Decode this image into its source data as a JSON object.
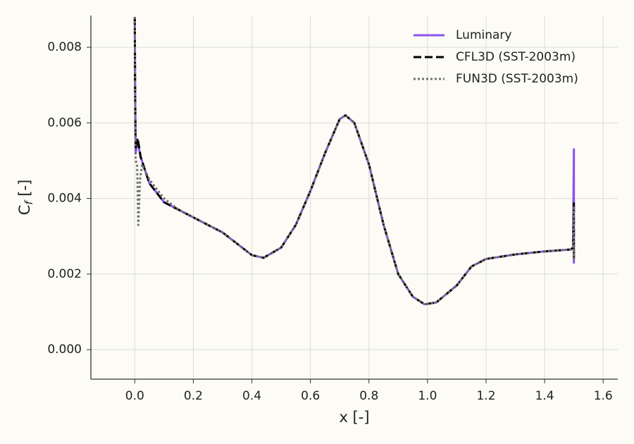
{
  "chart_data": {
    "type": "line",
    "xlabel": "x [-]",
    "ylabel": [
      "C",
      "f",
      " [-]"
    ],
    "xlim": [
      -0.15,
      1.65
    ],
    "ylim": [
      -0.00078,
      0.00884
    ],
    "xticks": [
      {
        "value": 0.0,
        "label": "0.0"
      },
      0.2,
      0.4,
      0.6,
      0.8,
      {
        "value": 1.0,
        "label": "1.0"
      },
      1.2,
      1.4,
      1.6
    ],
    "yticks": [
      {
        "value": 0.0,
        "label": "0.000"
      },
      {
        "value": 0.002,
        "label": "0.002"
      },
      {
        "value": 0.004,
        "label": "0.004"
      },
      {
        "value": 0.006,
        "label": "0.006"
      },
      {
        "value": 0.008,
        "label": "0.008"
      }
    ],
    "grid": true,
    "legend": "upper right",
    "series": [
      {
        "name": "Luminary",
        "color": "#8b54ee",
        "style": "solid",
        "x": [
          0.0,
          0.001,
          0.003,
          0.01,
          0.02,
          0.05,
          0.1,
          0.15,
          0.2,
          0.25,
          0.3,
          0.35,
          0.4,
          0.44,
          0.5,
          0.55,
          0.6,
          0.65,
          0.7,
          0.72,
          0.75,
          0.8,
          0.85,
          0.9,
          0.95,
          0.99,
          1.03,
          1.1,
          1.15,
          1.2,
          1.3,
          1.4,
          1.49,
          1.497,
          1.5,
          1.5,
          1.5
        ],
        "values": [
          0.0088,
          0.007,
          0.0052,
          0.0055,
          0.0051,
          0.0044,
          0.0039,
          0.0037,
          0.0035,
          0.0033,
          0.0031,
          0.0028,
          0.0025,
          0.00243,
          0.0027,
          0.0033,
          0.0042,
          0.0052,
          0.0061,
          0.0062,
          0.006,
          0.0049,
          0.0033,
          0.002,
          0.0014,
          0.0012,
          0.00125,
          0.0017,
          0.0022,
          0.0024,
          0.00252,
          0.0026,
          0.00265,
          0.0027,
          0.0053,
          0.0023,
          0.0027
        ]
      },
      {
        "name": "CFL3D (SST-2003m)",
        "color": "#000000",
        "style": "dashed",
        "x": [
          0.0,
          0.001,
          0.003,
          0.01,
          0.02,
          0.05,
          0.1,
          0.15,
          0.2,
          0.25,
          0.3,
          0.35,
          0.4,
          0.44,
          0.5,
          0.55,
          0.6,
          0.65,
          0.7,
          0.72,
          0.75,
          0.8,
          0.85,
          0.9,
          0.95,
          0.99,
          1.03,
          1.1,
          1.15,
          1.2,
          1.3,
          1.4,
          1.49,
          1.497,
          1.5,
          1.5,
          1.5
        ],
        "values": [
          0.0088,
          0.007,
          0.0053,
          0.0056,
          0.0051,
          0.0044,
          0.0039,
          0.0037,
          0.0035,
          0.0033,
          0.0031,
          0.0028,
          0.0025,
          0.00243,
          0.0027,
          0.0033,
          0.0042,
          0.0052,
          0.0061,
          0.0062,
          0.006,
          0.0049,
          0.0033,
          0.002,
          0.0014,
          0.0012,
          0.00125,
          0.0017,
          0.0022,
          0.0024,
          0.00252,
          0.0026,
          0.00265,
          0.0027,
          0.0039,
          0.0024,
          0.0027
        ]
      },
      {
        "name": "FUN3D (SST-2003m)",
        "color": "#707070",
        "style": "dotted",
        "x": [
          0.0,
          0.001,
          0.003,
          0.008,
          0.012,
          0.018,
          0.025,
          0.05,
          0.1,
          0.15,
          0.2,
          0.25,
          0.3,
          0.35,
          0.4,
          0.44,
          0.5,
          0.55,
          0.6,
          0.65,
          0.7,
          0.72,
          0.75,
          0.8,
          0.85,
          0.9,
          0.95,
          0.99,
          1.03,
          1.1,
          1.15,
          1.2,
          1.3,
          1.4,
          1.49,
          1.497,
          1.5,
          1.5,
          1.5
        ],
        "values": [
          0.0088,
          0.007,
          0.005,
          0.0049,
          0.0033,
          0.0045,
          0.0049,
          0.0045,
          0.004,
          0.0037,
          0.0035,
          0.0033,
          0.0031,
          0.0028,
          0.0025,
          0.00243,
          0.0027,
          0.0033,
          0.0042,
          0.0052,
          0.0061,
          0.0062,
          0.006,
          0.0049,
          0.0033,
          0.002,
          0.0014,
          0.0012,
          0.00125,
          0.0017,
          0.0022,
          0.0024,
          0.00252,
          0.0026,
          0.00265,
          0.0027,
          0.0038,
          0.0024,
          0.0027
        ]
      }
    ]
  }
}
